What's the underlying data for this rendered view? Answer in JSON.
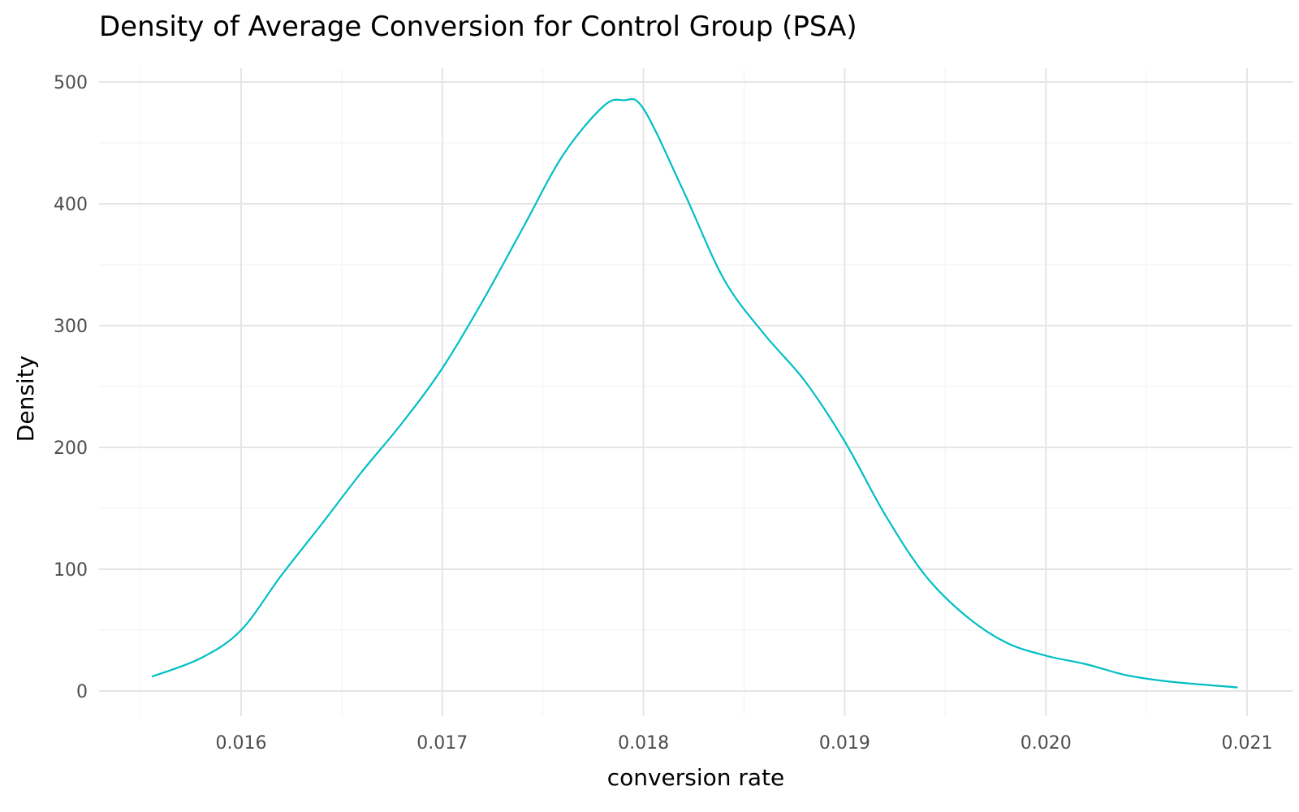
{
  "chart_data": {
    "type": "line",
    "title": "Density of Average Conversion for Control Group (PSA)",
    "xlabel": "conversion rate",
    "ylabel": "Density",
    "xlim": [
      0.0153,
      0.0212
    ],
    "ylim": [
      -20,
      510
    ],
    "x_ticks": [
      0.016,
      0.017,
      0.018,
      0.019,
      0.02,
      0.021
    ],
    "x_tick_labels": [
      "0.016",
      "0.017",
      "0.018",
      "0.019",
      "0.020",
      "0.021"
    ],
    "x_minor_ticks": [
      0.0155,
      0.0165,
      0.0175,
      0.0185,
      0.0195,
      0.0205
    ],
    "y_ticks": [
      0,
      100,
      200,
      300,
      400,
      500
    ],
    "y_tick_labels": [
      "0",
      "100",
      "200",
      "300",
      "400",
      "500"
    ],
    "y_minor_ticks": [
      50,
      150,
      250,
      350,
      450
    ],
    "grid": true,
    "legend": false,
    "colors": {
      "line": "#00bfc4",
      "grid_major": "#e5e5e5",
      "grid_minor": "#f4f4f4",
      "tick_text": "#4d4d4d",
      "text": "#000000"
    },
    "series": [
      {
        "x": [
          0.01556,
          0.0158,
          0.016,
          0.0162,
          0.0164,
          0.0166,
          0.0168,
          0.017,
          0.0172,
          0.0174,
          0.0176,
          0.0178,
          0.0179,
          0.018,
          0.0182,
          0.0184,
          0.0186,
          0.0188,
          0.019,
          0.0192,
          0.0194,
          0.0196,
          0.0198,
          0.02,
          0.0202,
          0.0204,
          0.0206,
          0.0208,
          0.02095
        ],
        "y": [
          12,
          27,
          50,
          95,
          137,
          180,
          220,
          265,
          320,
          380,
          440,
          480,
          485,
          478,
          410,
          338,
          293,
          255,
          205,
          145,
          95,
          62,
          40,
          29,
          22,
          13,
          8,
          5,
          3
        ]
      }
    ]
  }
}
